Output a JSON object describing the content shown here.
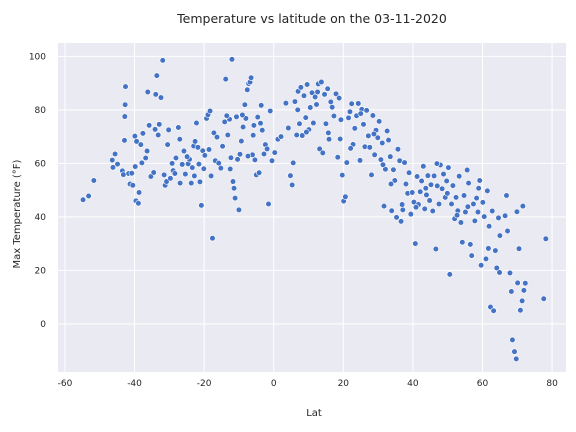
{
  "chart_data": {
    "type": "scatter",
    "title": "Temperature vs latitude on the 03-11-2020",
    "xlabel": "Lat",
    "ylabel": "Max Temperature (°F)",
    "xlim": [
      -62,
      84
    ],
    "ylim": [
      -18,
      105
    ],
    "xticks": [
      "-60",
      "-40",
      "-20",
      "0",
      "20",
      "40",
      "60",
      "80"
    ],
    "yticks": [
      "0",
      "20",
      "40",
      "60",
      "80",
      "100"
    ],
    "grid": true,
    "colors": {
      "marker": "#4472c4",
      "plot_bg": "#eaeaf2",
      "grid": "#ffffff"
    },
    "points": [
      [
        -54.8,
        46.4
      ],
      [
        -53.2,
        47.8
      ],
      [
        -51.7,
        53.6
      ],
      [
        -46.4,
        61.2
      ],
      [
        -46.2,
        58.5
      ],
      [
        -45.6,
        63.5
      ],
      [
        -44.9,
        59.7
      ],
      [
        -43.5,
        57.2
      ],
      [
        -43.2,
        55.8
      ],
      [
        -42.9,
        68.6
      ],
      [
        -42.8,
        77.5
      ],
      [
        -42.7,
        81.9
      ],
      [
        -42.6,
        88.7
      ],
      [
        -41.7,
        56.2
      ],
      [
        -41.3,
        52.3
      ],
      [
        -40.8,
        56.3
      ],
      [
        -40.5,
        51.8
      ],
      [
        -39.9,
        70.2
      ],
      [
        -39.4,
        68.2
      ],
      [
        -39.8,
        58.8
      ],
      [
        -38.7,
        49.1
      ],
      [
        -38.2,
        67.0
      ],
      [
        -37.9,
        60.2
      ],
      [
        -37.6,
        71.2
      ],
      [
        -36.8,
        62.0
      ],
      [
        -36.4,
        64.6
      ],
      [
        -35.3,
        55.1
      ],
      [
        -34.5,
        56.6
      ],
      [
        -34.1,
        72.7
      ],
      [
        -33.9,
        85.8
      ],
      [
        -33.6,
        92.8
      ],
      [
        -33.2,
        70.6
      ],
      [
        -32.9,
        74.6
      ],
      [
        -32.4,
        84.6
      ],
      [
        -31.9,
        98.5
      ],
      [
        -31.5,
        55.7
      ],
      [
        -31.2,
        51.8
      ],
      [
        -30.8,
        53.2
      ],
      [
        -30.2,
        72.5
      ],
      [
        -29.7,
        54.4
      ],
      [
        -29.2,
        60.0
      ],
      [
        -28.9,
        57.3
      ],
      [
        -28.1,
        62.0
      ],
      [
        -27.4,
        73.4
      ],
      [
        -26.9,
        52.6
      ],
      [
        -26.3,
        59.6
      ],
      [
        -25.8,
        64.6
      ],
      [
        -25.4,
        56.0
      ],
      [
        -24.6,
        59.8
      ],
      [
        -24.2,
        61.5
      ],
      [
        -23.7,
        52.6
      ],
      [
        -23.4,
        58.4
      ],
      [
        -23.0,
        66.5
      ],
      [
        -22.6,
        68.2
      ],
      [
        -22.2,
        75.1
      ],
      [
        -21.8,
        66.0
      ],
      [
        -21.5,
        59.7
      ],
      [
        -21.2,
        53.1
      ],
      [
        -20.8,
        44.3
      ],
      [
        -20.4,
        64.7
      ],
      [
        -19.8,
        63.0
      ],
      [
        -19.3,
        76.8
      ],
      [
        -18.9,
        78.2
      ],
      [
        -18.6,
        65.2
      ],
      [
        -18.0,
        55.3
      ],
      [
        -17.6,
        32.0
      ],
      [
        -17.2,
        71.4
      ],
      [
        -16.8,
        61.0
      ],
      [
        -16.3,
        69.8
      ],
      [
        -15.8,
        60.1
      ],
      [
        -15.2,
        58.2
      ],
      [
        -14.7,
        66.4
      ],
      [
        -14.1,
        75.5
      ],
      [
        -13.8,
        91.5
      ],
      [
        -13.2,
        70.6
      ],
      [
        -12.7,
        76.5
      ],
      [
        -12.3,
        62.1
      ],
      [
        -12.0,
        98.9
      ],
      [
        -11.7,
        53.2
      ],
      [
        -11.4,
        50.7
      ],
      [
        -11.1,
        47.0
      ],
      [
        -10.7,
        77.4
      ],
      [
        -10.4,
        61.5
      ],
      [
        -10.0,
        42.6
      ],
      [
        -9.7,
        63.4
      ],
      [
        -9.3,
        68.3
      ],
      [
        -8.8,
        73.6
      ],
      [
        -8.3,
        81.9
      ],
      [
        -8.0,
        76.8
      ],
      [
        -7.6,
        87.5
      ],
      [
        -7.2,
        89.8
      ],
      [
        -6.8,
        90.4
      ],
      [
        -6.5,
        92.0
      ],
      [
        -6.1,
        63.2
      ],
      [
        -5.7,
        74.2
      ],
      [
        -5.4,
        61.3
      ],
      [
        -5.0,
        55.7
      ],
      [
        -4.6,
        77.3
      ],
      [
        -4.2,
        56.5
      ],
      [
        -3.8,
        75.0
      ],
      [
        -3.3,
        72.4
      ],
      [
        -2.8,
        63.5
      ],
      [
        -2.4,
        67.0
      ],
      [
        -1.9,
        65.4
      ],
      [
        -1.5,
        44.8
      ],
      [
        -1.0,
        79.6
      ],
      [
        -0.5,
        61.0
      ],
      [
        0.3,
        64.0
      ],
      [
        1.2,
        69.0
      ],
      [
        3.5,
        82.5
      ],
      [
        4.2,
        73.2
      ],
      [
        4.8,
        55.4
      ],
      [
        5.3,
        51.9
      ],
      [
        5.6,
        60.2
      ],
      [
        6.1,
        83.1
      ],
      [
        6.6,
        70.6
      ],
      [
        7.0,
        86.9
      ],
      [
        7.4,
        74.8
      ],
      [
        7.8,
        88.4
      ],
      [
        8.2,
        70.4
      ],
      [
        8.7,
        85.3
      ],
      [
        9.2,
        77.1
      ],
      [
        9.6,
        89.5
      ],
      [
        10.1,
        72.6
      ],
      [
        10.5,
        80.9
      ],
      [
        11.0,
        86.4
      ],
      [
        11.4,
        75.1
      ],
      [
        11.9,
        84.8
      ],
      [
        12.3,
        82.0
      ],
      [
        12.8,
        89.7
      ],
      [
        13.2,
        65.4
      ],
      [
        13.7,
        90.4
      ],
      [
        14.1,
        63.9
      ],
      [
        14.6,
        85.8
      ],
      [
        15.0,
        74.8
      ],
      [
        15.5,
        87.9
      ],
      [
        15.9,
        69.0
      ],
      [
        16.4,
        83.0
      ],
      [
        16.8,
        81.0
      ],
      [
        17.3,
        77.7
      ],
      [
        17.9,
        86.0
      ],
      [
        18.4,
        62.3
      ],
      [
        18.8,
        84.4
      ],
      [
        19.3,
        76.3
      ],
      [
        19.7,
        55.6
      ],
      [
        20.1,
        45.9
      ],
      [
        20.6,
        47.5
      ],
      [
        21.0,
        60.3
      ],
      [
        21.5,
        77.0
      ],
      [
        21.9,
        79.3
      ],
      [
        22.4,
        82.3
      ],
      [
        22.8,
        67.1
      ],
      [
        23.3,
        73.1
      ],
      [
        23.8,
        77.8
      ],
      [
        24.3,
        82.4
      ],
      [
        24.8,
        61.1
      ],
      [
        25.3,
        80.2
      ],
      [
        25.8,
        74.6
      ],
      [
        26.2,
        66.2
      ],
      [
        26.7,
        79.8
      ],
      [
        27.2,
        70.3
      ],
      [
        27.6,
        66.0
      ],
      [
        28.1,
        55.7
      ],
      [
        28.5,
        77.9
      ],
      [
        29.0,
        63.2
      ],
      [
        29.4,
        72.4
      ],
      [
        29.9,
        69.6
      ],
      [
        30.3,
        75.7
      ],
      [
        30.8,
        61.4
      ],
      [
        31.2,
        67.6
      ],
      [
        31.7,
        44.0
      ],
      [
        32.1,
        57.8
      ],
      [
        32.6,
        72.1
      ],
      [
        33.0,
        68.7
      ],
      [
        33.5,
        62.5
      ],
      [
        33.9,
        42.3
      ],
      [
        34.4,
        57.6
      ],
      [
        34.8,
        53.6
      ],
      [
        35.3,
        39.8
      ],
      [
        35.7,
        65.3
      ],
      [
        36.2,
        61.0
      ],
      [
        36.6,
        38.3
      ],
      [
        37.1,
        42.6
      ],
      [
        37.6,
        60.3
      ],
      [
        38.0,
        52.3
      ],
      [
        38.5,
        48.8
      ],
      [
        38.9,
        56.5
      ],
      [
        39.4,
        41.0
      ],
      [
        39.8,
        49.1
      ],
      [
        40.3,
        45.5
      ],
      [
        40.7,
        30.0
      ],
      [
        41.2,
        55.1
      ],
      [
        41.6,
        44.6
      ],
      [
        42.1,
        49.4
      ],
      [
        42.5,
        53.4
      ],
      [
        43.0,
        58.9
      ],
      [
        43.4,
        43.0
      ],
      [
        43.9,
        48.2
      ],
      [
        44.3,
        55.4
      ],
      [
        44.8,
        46.1
      ],
      [
        45.2,
        52.0
      ],
      [
        45.7,
        42.2
      ],
      [
        46.1,
        55.3
      ],
      [
        46.6,
        28.0
      ],
      [
        47.0,
        51.6
      ],
      [
        47.5,
        44.8
      ],
      [
        47.9,
        59.4
      ],
      [
        48.4,
        50.5
      ],
      [
        48.8,
        56.0
      ],
      [
        49.3,
        47.3
      ],
      [
        49.7,
        53.4
      ],
      [
        50.2,
        58.4
      ],
      [
        50.6,
        18.5
      ],
      [
        51.1,
        44.8
      ],
      [
        51.5,
        51.7
      ],
      [
        52.0,
        39.3
      ],
      [
        52.4,
        47.3
      ],
      [
        52.9,
        42.3
      ],
      [
        53.3,
        55.2
      ],
      [
        53.8,
        37.9
      ],
      [
        54.2,
        30.5
      ],
      [
        54.7,
        48.0
      ],
      [
        55.1,
        41.8
      ],
      [
        55.6,
        57.5
      ],
      [
        56.0,
        52.6
      ],
      [
        56.5,
        29.7
      ],
      [
        56.9,
        25.5
      ],
      [
        57.4,
        44.8
      ],
      [
        57.8,
        38.5
      ],
      [
        58.3,
        47.0
      ],
      [
        58.7,
        41.8
      ],
      [
        59.2,
        53.6
      ],
      [
        59.6,
        21.9
      ],
      [
        60.1,
        45.4
      ],
      [
        60.5,
        40.1
      ],
      [
        61.0,
        24.3
      ],
      [
        61.4,
        49.7
      ],
      [
        61.9,
        36.5
      ],
      [
        62.3,
        6.3
      ],
      [
        62.8,
        42.2
      ],
      [
        63.2,
        4.9
      ],
      [
        63.7,
        27.4
      ],
      [
        64.1,
        20.9
      ],
      [
        64.6,
        39.6
      ],
      [
        65.0,
        33.0
      ],
      [
        66.5,
        40.4
      ],
      [
        67.2,
        34.7
      ],
      [
        67.9,
        19.0
      ],
      [
        68.3,
        12.1
      ],
      [
        68.6,
        -6.0
      ],
      [
        69.2,
        -10.4
      ],
      [
        69.7,
        -13.1
      ],
      [
        70.1,
        15.3
      ],
      [
        70.5,
        28.1
      ],
      [
        70.9,
        5.1
      ],
      [
        71.4,
        8.6
      ],
      [
        71.9,
        12.5
      ],
      [
        72.3,
        15.2
      ],
      [
        77.6,
        9.4
      ],
      [
        78.2,
        31.8
      ],
      [
        -39.6,
        46.0
      ],
      [
        -38.9,
        45.1
      ],
      [
        -36.2,
        86.7
      ],
      [
        -35.8,
        74.2
      ],
      [
        -30.5,
        67.0
      ],
      [
        -28.4,
        56.2
      ],
      [
        -27.0,
        69.0
      ],
      [
        -24.9,
        62.5
      ],
      [
        -22.8,
        55.3
      ],
      [
        -20.1,
        58.0
      ],
      [
        -18.3,
        79.6
      ],
      [
        -13.5,
        77.8
      ],
      [
        -12.5,
        57.9
      ],
      [
        -9.0,
        78.1
      ],
      [
        -7.4,
        62.7
      ],
      [
        -5.9,
        70.5
      ],
      [
        -3.6,
        81.7
      ],
      [
        2.1,
        70.0
      ],
      [
        6.9,
        80.0
      ],
      [
        9.4,
        71.7
      ],
      [
        12.6,
        86.7
      ],
      [
        15.7,
        71.4
      ],
      [
        19.1,
        69.1
      ],
      [
        22.1,
        65.6
      ],
      [
        25.0,
        78.6
      ],
      [
        28.8,
        71.0
      ],
      [
        31.4,
        59.5
      ],
      [
        33.7,
        52.3
      ],
      [
        36.9,
        44.6
      ],
      [
        40.9,
        43.6
      ],
      [
        43.7,
        50.7
      ],
      [
        46.9,
        59.9
      ],
      [
        49.9,
        48.8
      ],
      [
        52.7,
        40.6
      ],
      [
        55.8,
        43.8
      ],
      [
        58.9,
        50.7
      ],
      [
        61.7,
        28.2
      ],
      [
        64.9,
        19.2
      ],
      [
        66.9,
        48.0
      ],
      [
        69.9,
        41.9
      ],
      [
        71.6,
        44.0
      ]
    ]
  }
}
